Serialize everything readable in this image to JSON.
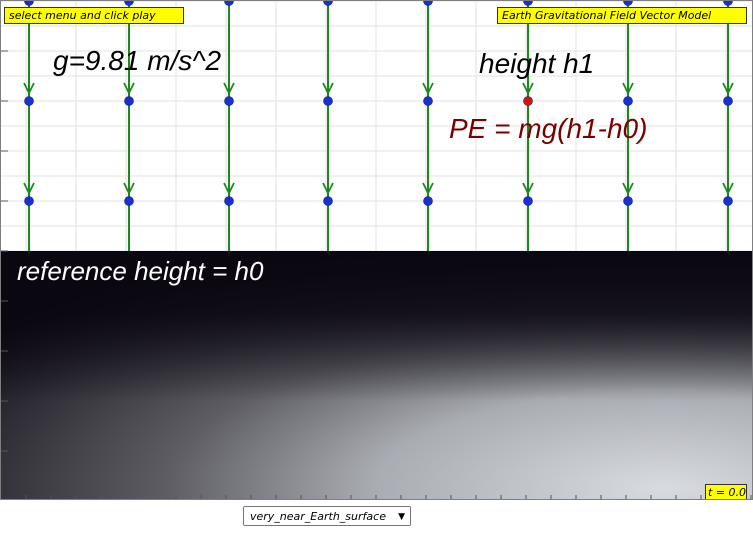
{
  "instruction_tag": "select menu and click play",
  "model_title": "Earth Gravitational Field Vector Model",
  "gravity_label": "g=9.81 m/s^2",
  "height_label": "height h1",
  "pe_formula": "PE = mg(h1-h0)",
  "reference_label": "reference height = h0",
  "time_readout": "t = 0.0",
  "dropdown": {
    "selected": "very_near_Earth_surface",
    "arrow_icon": "triangle-down-icon"
  },
  "colors": {
    "vector_line": "#1a8a1a",
    "point_marker": "#1b2fd6",
    "selected_marker": "#e01010",
    "pe_text": "#7a0000",
    "tag_bg": "#ffff00",
    "ground_top": "#0a0710",
    "ground_bottom": "#c9ccd2"
  }
}
